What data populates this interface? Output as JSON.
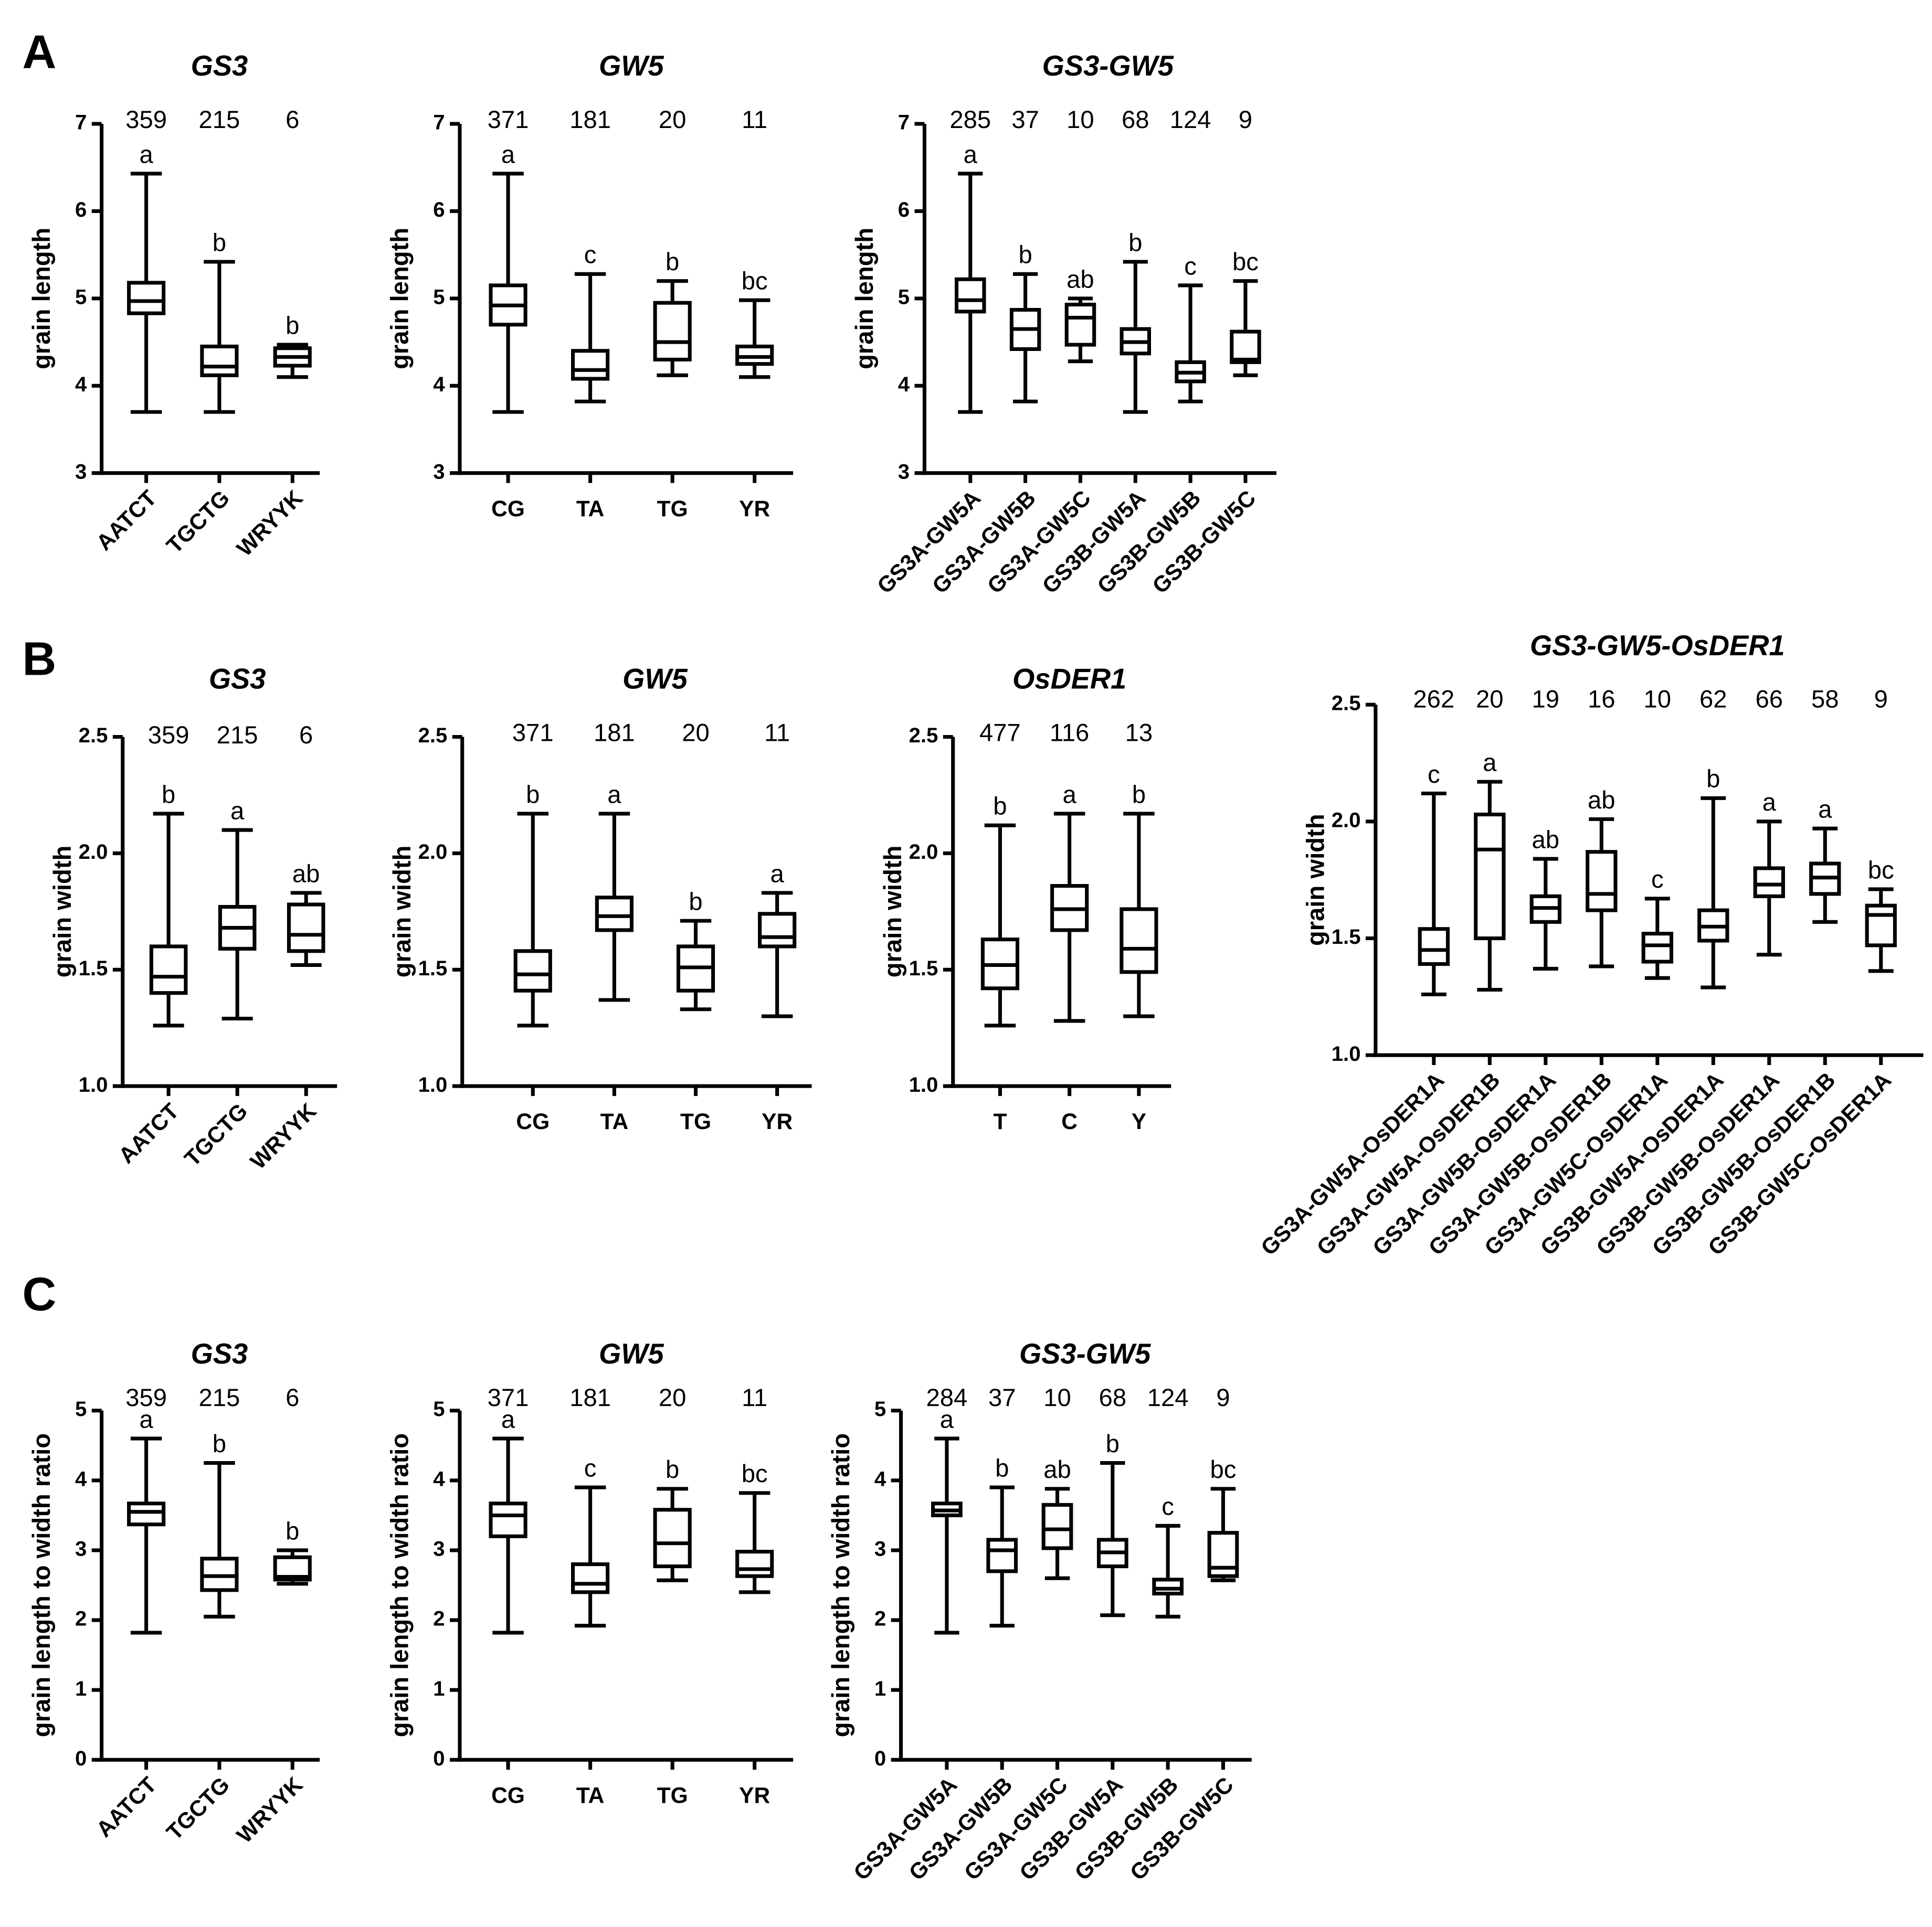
{
  "chart_data": [
    {
      "type": "box",
      "panel": "A",
      "title": "GS3",
      "ylabel": "grain length",
      "categories": [
        "AATCT",
        "TGCTG",
        "WRYYK"
      ],
      "n": [
        359,
        215,
        6
      ],
      "letters": [
        "a",
        "b",
        "b"
      ],
      "min": [
        3.7,
        3.7,
        4.1
      ],
      "q1": [
        4.83,
        4.12,
        4.23
      ],
      "median": [
        4.97,
        4.22,
        4.33
      ],
      "q3": [
        5.18,
        4.45,
        4.43
      ],
      "max": [
        6.43,
        5.42,
        4.47
      ],
      "ylim": [
        3,
        7
      ],
      "yticks": [
        3,
        4,
        5,
        6,
        7
      ]
    },
    {
      "type": "box",
      "title": "GW5",
      "ylabel": "grain length",
      "categories": [
        "CG",
        "TA",
        "TG",
        "YR"
      ],
      "n": [
        371,
        181,
        20,
        11
      ],
      "letters": [
        "a",
        "c",
        "b",
        "bc"
      ],
      "min": [
        3.7,
        3.82,
        4.12,
        4.1
      ],
      "q1": [
        4.7,
        4.08,
        4.3,
        4.25
      ],
      "median": [
        4.92,
        4.18,
        4.5,
        4.33
      ],
      "q3": [
        5.15,
        4.4,
        4.95,
        4.45
      ],
      "max": [
        6.43,
        5.28,
        5.2,
        4.98
      ],
      "ylim": [
        3,
        7
      ],
      "yticks": [
        3,
        4,
        5,
        6,
        7
      ]
    },
    {
      "type": "box",
      "title": "GS3-GW5",
      "ylabel": "grain length",
      "categories": [
        "GS3A-GW5A",
        "GS3A-GW5B",
        "GS3A-GW5C",
        "GS3B-GW5A",
        "GS3B-GW5B",
        "GS3B-GW5C"
      ],
      "n": [
        285,
        37,
        10,
        68,
        124,
        9
      ],
      "letters": [
        "a",
        "b",
        "ab",
        "b",
        "c",
        "bc"
      ],
      "min": [
        3.7,
        3.82,
        4.28,
        3.7,
        3.82,
        4.12
      ],
      "q1": [
        4.85,
        4.42,
        4.47,
        4.37,
        4.05,
        4.27
      ],
      "median": [
        4.98,
        4.65,
        4.78,
        4.5,
        4.15,
        4.3
      ],
      "q3": [
        5.22,
        4.87,
        4.93,
        4.65,
        4.27,
        4.62
      ],
      "max": [
        6.43,
        5.28,
        5.0,
        5.42,
        5.15,
        5.2
      ],
      "ylim": [
        3,
        7
      ],
      "yticks": [
        3,
        4,
        5,
        6,
        7
      ]
    },
    {
      "type": "box",
      "panel": "B",
      "title": "GS3",
      "ylabel": "grain width",
      "categories": [
        "AATCT",
        "TGCTG",
        "WRYYK"
      ],
      "n": [
        359,
        215,
        6
      ],
      "letters": [
        "b",
        "a",
        "ab"
      ],
      "min": [
        1.26,
        1.29,
        1.52
      ],
      "q1": [
        1.4,
        1.59,
        1.58
      ],
      "median": [
        1.47,
        1.68,
        1.65
      ],
      "q3": [
        1.6,
        1.77,
        1.78
      ],
      "max": [
        2.17,
        2.1,
        1.83
      ],
      "ylim": [
        1,
        2.5
      ],
      "yticks": [
        {
          "value": 1,
          "label": "1.0"
        },
        1.5,
        {
          "value": 2,
          "label": "2.0"
        },
        2.5
      ]
    },
    {
      "type": "box",
      "title": "GW5",
      "ylabel": "grain width",
      "categories": [
        "CG",
        "TA",
        "TG",
        "YR"
      ],
      "n": [
        371,
        181,
        20,
        11
      ],
      "letters": [
        "b",
        "a",
        "b",
        "a"
      ],
      "min": [
        1.26,
        1.37,
        1.33,
        1.3
      ],
      "q1": [
        1.41,
        1.67,
        1.41,
        1.6
      ],
      "median": [
        1.48,
        1.73,
        1.51,
        1.64
      ],
      "q3": [
        1.58,
        1.81,
        1.6,
        1.74
      ],
      "max": [
        2.17,
        2.17,
        1.71,
        1.83
      ],
      "ylim": [
        1,
        2.5
      ],
      "yticks": [
        {
          "value": 1,
          "label": "1.0"
        },
        1.5,
        {
          "value": 2,
          "label": "2.0"
        },
        2.5
      ]
    },
    {
      "type": "box",
      "title": "OsDER1",
      "ylabel": "grain width",
      "categories": [
        "T",
        "C",
        "Y"
      ],
      "n": [
        477,
        116,
        13
      ],
      "letters": [
        "b",
        "a",
        "b"
      ],
      "min": [
        1.26,
        1.28,
        1.3
      ],
      "q1": [
        1.42,
        1.67,
        1.49
      ],
      "median": [
        1.52,
        1.76,
        1.59
      ],
      "q3": [
        1.63,
        1.86,
        1.76
      ],
      "max": [
        2.12,
        2.17,
        2.17
      ],
      "ylim": [
        1,
        2.5
      ],
      "yticks": [
        {
          "value": 1,
          "label": "1.0"
        },
        1.5,
        {
          "value": 2,
          "label": "2.0"
        },
        2.5
      ]
    },
    {
      "type": "box",
      "title": "GS3-GW5-OsDER1",
      "ylabel": "grain width",
      "categories": [
        "GS3A-GW5A-OsDER1A",
        "GS3A-GW5A-OsDER1B",
        "GS3A-GW5B-OsDER1A",
        "GS3A-GW5B-OsDER1B",
        "GS3A-GW5C-OsDER1A",
        "GS3B-GW5A-OsDER1A",
        "GS3B-GW5B-OsDER1A",
        "GS3B-GW5B-OsDER1B",
        "GS3B-GW5C-OsDER1A"
      ],
      "n": [
        262,
        20,
        19,
        16,
        10,
        62,
        66,
        58,
        9
      ],
      "letters": [
        "c",
        "a",
        "ab",
        "ab",
        "c",
        "b",
        "a",
        "a",
        "bc"
      ],
      "min": [
        1.26,
        1.28,
        1.37,
        1.38,
        1.33,
        1.29,
        1.43,
        1.57,
        1.36
      ],
      "q1": [
        1.39,
        1.5,
        1.57,
        1.62,
        1.4,
        1.49,
        1.68,
        1.69,
        1.47
      ],
      "median": [
        1.45,
        1.88,
        1.63,
        1.69,
        1.47,
        1.55,
        1.73,
        1.76,
        1.6
      ],
      "q3": [
        1.54,
        2.03,
        1.68,
        1.87,
        1.52,
        1.62,
        1.8,
        1.82,
        1.64
      ],
      "max": [
        2.12,
        2.17,
        1.84,
        2.01,
        1.67,
        2.1,
        2.0,
        1.97,
        1.71
      ],
      "ylim": [
        1,
        2.5
      ],
      "yticks": [
        {
          "value": 1,
          "label": "1.0"
        },
        1.5,
        {
          "value": 2,
          "label": "2.0"
        },
        2.5
      ]
    },
    {
      "type": "box",
      "panel": "C",
      "title": "GS3",
      "ylabel": "grain length to width ratio",
      "categories": [
        "AATCT",
        "TGCTG",
        "WRYYK"
      ],
      "n": [
        359,
        215,
        6
      ],
      "letters": [
        "a",
        "b",
        "b"
      ],
      "min": [
        1.82,
        2.05,
        2.52
      ],
      "q1": [
        3.37,
        2.43,
        2.58
      ],
      "median": [
        3.55,
        2.63,
        2.62
      ],
      "q3": [
        3.67,
        2.88,
        2.9
      ],
      "max": [
        4.6,
        4.25,
        3.0
      ],
      "ylim": [
        0,
        5
      ],
      "yticks": [
        0,
        1,
        2,
        3,
        4,
        5
      ]
    },
    {
      "type": "box",
      "title": "GW5",
      "ylabel": "grain length to width ratio",
      "categories": [
        "CG",
        "TA",
        "TG",
        "YR"
      ],
      "n": [
        371,
        181,
        20,
        11
      ],
      "letters": [
        "a",
        "c",
        "b",
        "bc"
      ],
      "min": [
        1.82,
        1.92,
        2.57,
        2.4
      ],
      "q1": [
        3.2,
        2.4,
        2.77,
        2.63
      ],
      "median": [
        3.5,
        2.52,
        3.1,
        2.73
      ],
      "q3": [
        3.67,
        2.8,
        3.58,
        2.98
      ],
      "max": [
        4.6,
        3.9,
        3.88,
        3.82
      ],
      "ylim": [
        0,
        5
      ],
      "yticks": [
        0,
        1,
        2,
        3,
        4,
        5
      ]
    },
    {
      "type": "box",
      "title": "GS3-GW5",
      "ylabel": "grain length to width ratio",
      "categories": [
        "GS3A-GW5A",
        "GS3A-GW5B",
        "GS3A-GW5C",
        "GS3B-GW5A",
        "GS3B-GW5B",
        "GS3B-GW5C"
      ],
      "n": [
        284,
        37,
        10,
        68,
        124,
        9
      ],
      "letters": [
        "a",
        "b",
        "ab",
        "b",
        "c",
        "bc"
      ],
      "min": [
        1.82,
        1.92,
        2.6,
        2.07,
        2.05,
        2.57
      ],
      "q1": [
        3.5,
        2.7,
        3.03,
        2.77,
        2.38,
        2.63
      ],
      "median": [
        3.57,
        3.0,
        3.3,
        2.97,
        2.45,
        2.75
      ],
      "q3": [
        3.67,
        3.15,
        3.65,
        3.15,
        2.58,
        3.25
      ],
      "max": [
        4.6,
        3.9,
        3.88,
        4.25,
        3.35,
        3.88
      ],
      "ylim": [
        0,
        5
      ],
      "yticks": [
        0,
        1,
        2,
        3,
        4,
        5
      ]
    }
  ]
}
